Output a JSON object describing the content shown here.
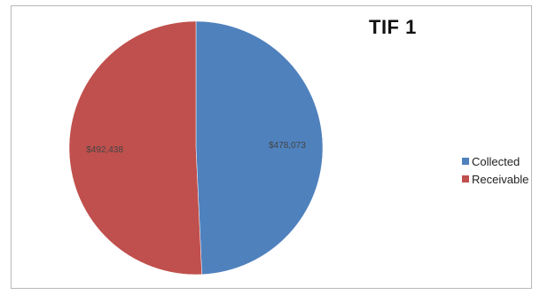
{
  "chart_data": {
    "type": "pie",
    "title": "TIF 1",
    "slices": [
      {
        "name": "Collected",
        "value": 478073,
        "label": "$478,073",
        "color": "#4f81bd"
      },
      {
        "name": "Receivable",
        "value": 492438,
        "label": "$492,438",
        "color": "#c0504d"
      }
    ],
    "legend_position": "right"
  }
}
